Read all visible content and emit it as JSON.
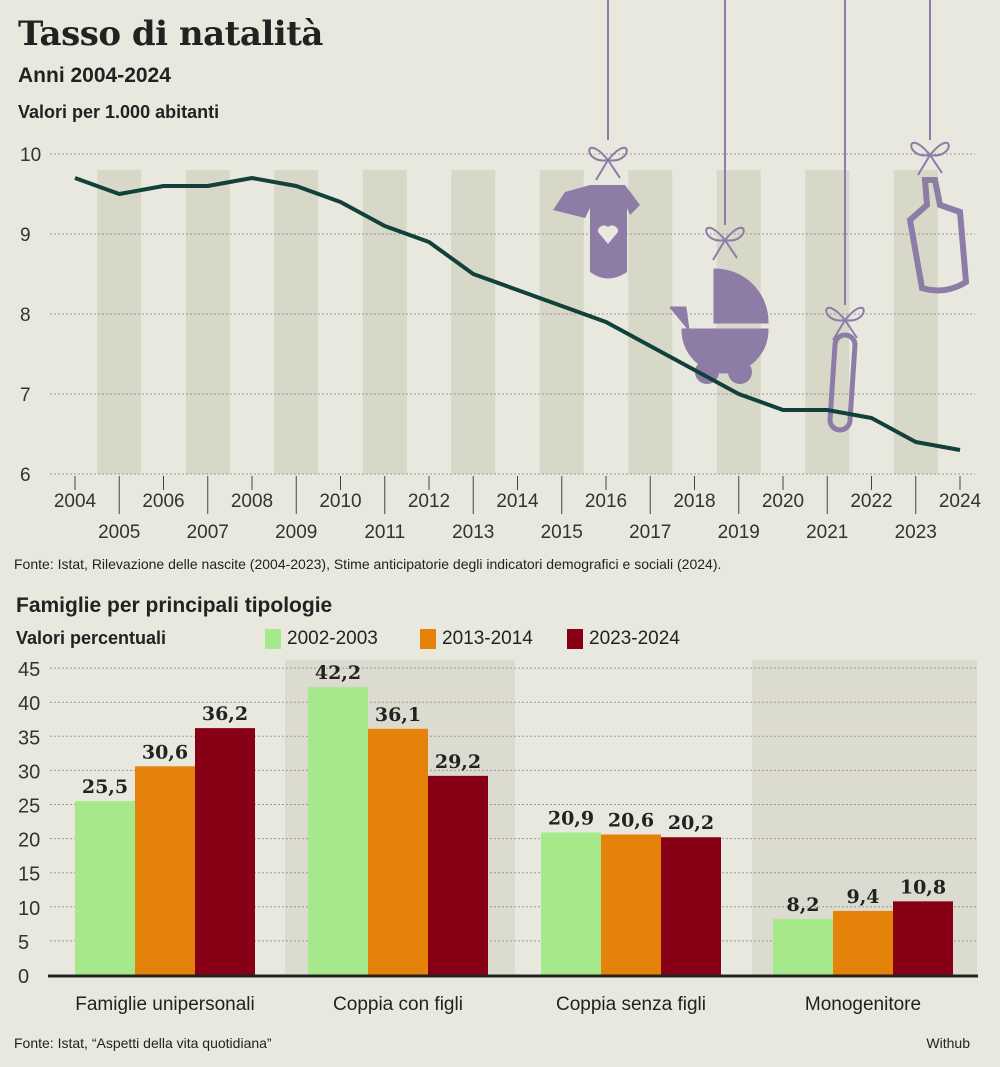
{
  "header": {
    "title": "Tasso di natalità",
    "subtitle": "Anni 2004-2024",
    "unit": "Valori per 1.000 abitanti"
  },
  "colors": {
    "background": "#e9e8df",
    "line": "#12413a",
    "icons": "#8c7ca6",
    "series": [
      "#a6e98a",
      "#e5820a",
      "#880016"
    ]
  },
  "icons": [
    "onesie-icon",
    "stroller-icon",
    "safety-pin-icon",
    "baby-bottle-icon"
  ],
  "chart_data": [
    {
      "type": "line",
      "title": "Tasso di natalità",
      "subtitle": "Anni 2004-2024",
      "ylabel": "Valori per 1.000 abitanti",
      "x": [
        2004,
        2005,
        2006,
        2007,
        2008,
        2009,
        2010,
        2011,
        2012,
        2013,
        2014,
        2015,
        2016,
        2017,
        2018,
        2019,
        2020,
        2021,
        2022,
        2023,
        2024
      ],
      "y": [
        9.7,
        9.5,
        9.6,
        9.6,
        9.7,
        9.6,
        9.4,
        9.1,
        8.9,
        8.5,
        8.3,
        8.1,
        7.9,
        7.6,
        7.3,
        7.0,
        6.8,
        6.8,
        6.7,
        6.4,
        6.3
      ],
      "ylim": [
        6,
        10
      ],
      "yticks": [
        "6",
        "7",
        "8",
        "9",
        "10"
      ],
      "grid": true,
      "source": "Fonte: Istat, Rilevazione delle nascite (2004-2023), Stime anticipatorie degli indicatori demografici e sociali (2024)."
    },
    {
      "type": "bar",
      "title": "Famiglie per principali tipologie",
      "ylabel": "Valori percentuali",
      "categories": [
        "Famiglie unipersonali",
        "Coppia con figli",
        "Coppia senza figli",
        "Monogenitore"
      ],
      "series": [
        {
          "name": "2002-2003",
          "values": [
            25.5,
            42.2,
            20.9,
            8.2
          ],
          "labels": [
            "25,5",
            "42,2",
            "20,9",
            "8,2"
          ]
        },
        {
          "name": "2013-2014",
          "values": [
            30.6,
            36.1,
            20.6,
            9.4
          ],
          "labels": [
            "30,6",
            "36,1",
            "20,6",
            "9,4"
          ]
        },
        {
          "name": "2023-2024",
          "values": [
            36.2,
            29.2,
            20.2,
            10.8
          ],
          "labels": [
            "36,2",
            "29,2",
            "20,2",
            "10,8"
          ]
        }
      ],
      "ylim": [
        0,
        45
      ],
      "yticks": [
        "0",
        "5",
        "10",
        "15",
        "20",
        "25",
        "30",
        "35",
        "40",
        "45"
      ],
      "grid": true,
      "legend": "top",
      "source": "Fonte: Istat, “Aspetti della vita quotidiana”",
      "credit": "Withub"
    }
  ]
}
